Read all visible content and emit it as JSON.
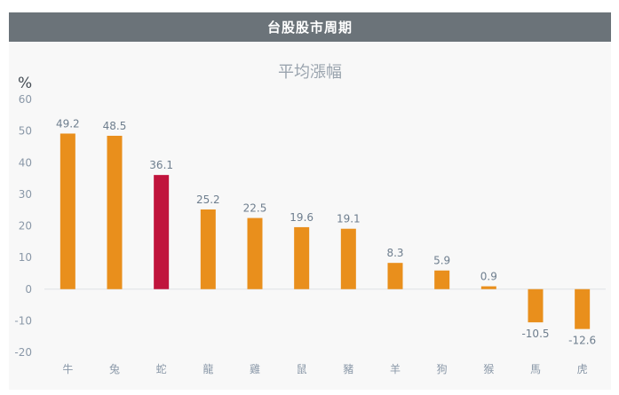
{
  "header": {
    "title": "台股股市周期"
  },
  "chart_data": {
    "type": "bar",
    "title": "平均漲幅",
    "ylabel": "%",
    "ylim": [
      -20,
      60
    ],
    "yticks": [
      60,
      50,
      40,
      30,
      20,
      10,
      0,
      -10,
      -20
    ],
    "grid": false,
    "categories": [
      "牛",
      "兔",
      "蛇",
      "龍",
      "雞",
      "鼠",
      "豬",
      "羊",
      "狗",
      "猴",
      "馬",
      "虎"
    ],
    "values": [
      49.2,
      48.5,
      36.1,
      25.2,
      22.5,
      19.6,
      19.1,
      8.3,
      5.9,
      0.9,
      -10.5,
      -12.6
    ],
    "value_labels": [
      "49.2",
      "48.5",
      "36.1",
      "25.2",
      "22.5",
      "19.6",
      "19.1",
      "8.3",
      "5.9",
      "0.9",
      "-10.5",
      "-12.6"
    ],
    "highlight_index": 2,
    "colors": {
      "bar": "#e98f1c",
      "highlight": "#c0143c",
      "axis_text": "#8a98a8",
      "title": "#9aa4ae",
      "label": "#6e7e8e"
    }
  }
}
